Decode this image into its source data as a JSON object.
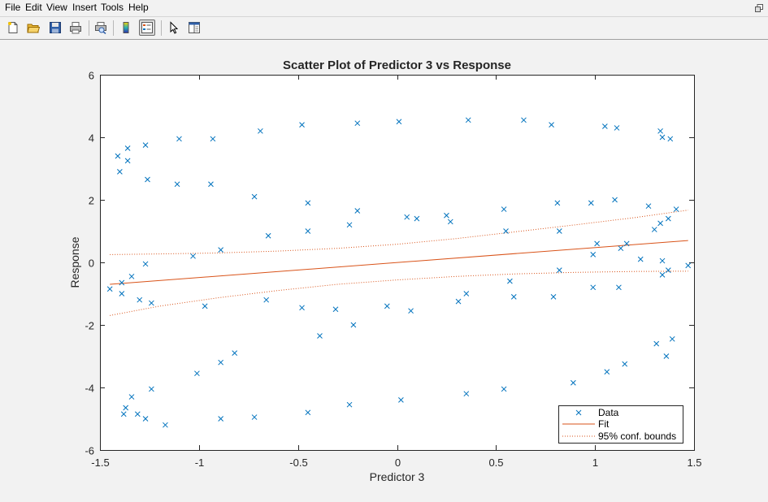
{
  "menu": {
    "items": [
      "File",
      "Edit",
      "View",
      "Insert",
      "Tools",
      "Help"
    ]
  },
  "toolbar": {
    "icons": [
      "new-figure-icon",
      "open-file-icon",
      "save-icon",
      "print-icon",
      "print-preview-icon",
      "colorbar-icon",
      "legend-icon",
      "pointer-icon",
      "property-editor-icon"
    ]
  },
  "colors": {
    "data": "#0072BD",
    "fit": "#D95319",
    "plot_bg": "#ffffff",
    "window_bg": "#f2f2f2"
  },
  "chart_data": {
    "type": "scatter",
    "title": "Scatter Plot of Predictor 3 vs Response",
    "xlabel": "Predictor 3",
    "ylabel": "Response",
    "xlim": [
      -1.5,
      1.5
    ],
    "ylim": [
      -6,
      6
    ],
    "xticks": [
      "-1.5",
      "-1",
      "-0.5",
      "0",
      "0.5",
      "1",
      "1.5"
    ],
    "yticks": [
      "-6",
      "-4",
      "-2",
      "0",
      "2",
      "4",
      "6"
    ],
    "grid": false,
    "legend_position": "bottom-right",
    "legend": [
      "Data",
      "Fit",
      "95% conf. bounds"
    ],
    "data_points": [
      [
        -1.41,
        3.4
      ],
      [
        -1.4,
        2.9
      ],
      [
        -1.36,
        3.65
      ],
      [
        -1.36,
        3.25
      ],
      [
        -1.27,
        3.75
      ],
      [
        -1.26,
        2.65
      ],
      [
        -1.11,
        2.5
      ],
      [
        -1.1,
        3.95
      ],
      [
        -0.94,
        2.5
      ],
      [
        -0.93,
        3.95
      ],
      [
        -0.89,
        0.4
      ],
      [
        -0.72,
        2.1
      ],
      [
        -0.69,
        4.2
      ],
      [
        -0.65,
        0.85
      ],
      [
        -0.48,
        4.4
      ],
      [
        -0.45,
        1.9
      ],
      [
        -0.45,
        1.0
      ],
      [
        -0.2,
        4.45
      ],
      [
        -0.2,
        1.65
      ],
      [
        -0.24,
        1.2
      ],
      [
        0.01,
        4.5
      ],
      [
        0.05,
        1.45
      ],
      [
        0.1,
        1.4
      ],
      [
        0.25,
        1.5
      ],
      [
        0.27,
        1.3
      ],
      [
        0.36,
        4.55
      ],
      [
        0.54,
        1.7
      ],
      [
        0.55,
        1.0
      ],
      [
        0.64,
        4.55
      ],
      [
        0.78,
        4.4
      ],
      [
        0.81,
        1.9
      ],
      [
        0.82,
        1.0
      ],
      [
        0.98,
        1.9
      ],
      [
        1.05,
        4.35
      ],
      [
        1.11,
        4.3
      ],
      [
        1.1,
        2.0
      ],
      [
        1.27,
        1.8
      ],
      [
        1.3,
        1.05
      ],
      [
        1.33,
        4.2
      ],
      [
        1.34,
        4.0
      ],
      [
        1.38,
        3.95
      ],
      [
        1.41,
        1.7
      ],
      [
        1.37,
        1.4
      ],
      [
        1.33,
        1.25
      ],
      [
        0.99,
        0.25
      ],
      [
        1.01,
        0.6
      ],
      [
        1.13,
        0.45
      ],
      [
        1.16,
        0.6
      ],
      [
        1.23,
        0.1
      ],
      [
        1.34,
        0.05
      ],
      [
        1.34,
        -0.4
      ],
      [
        1.37,
        -0.25
      ],
      [
        1.47,
        -0.1
      ],
      [
        -1.45,
        -0.85
      ],
      [
        -1.39,
        -1.0
      ],
      [
        -1.39,
        -0.65
      ],
      [
        -1.34,
        -0.45
      ],
      [
        -1.3,
        -1.2
      ],
      [
        -1.27,
        -0.05
      ],
      [
        -1.24,
        -1.3
      ],
      [
        -1.03,
        0.2
      ],
      [
        -0.97,
        -1.4
      ],
      [
        -0.66,
        -1.2
      ],
      [
        -0.48,
        -1.45
      ],
      [
        -0.31,
        -1.5
      ],
      [
        -0.05,
        -1.4
      ],
      [
        0.07,
        -1.55
      ],
      [
        0.31,
        -1.25
      ],
      [
        0.35,
        -1.0
      ],
      [
        0.57,
        -0.6
      ],
      [
        0.59,
        -1.1
      ],
      [
        0.79,
        -1.1
      ],
      [
        0.82,
        -0.25
      ],
      [
        0.99,
        -0.8
      ],
      [
        1.12,
        -0.8
      ],
      [
        -1.38,
        -4.85
      ],
      [
        -1.37,
        -4.65
      ],
      [
        -1.34,
        -4.3
      ],
      [
        -1.31,
        -4.85
      ],
      [
        -1.27,
        -5.0
      ],
      [
        -1.24,
        -4.05
      ],
      [
        -1.17,
        -5.2
      ],
      [
        -1.01,
        -3.55
      ],
      [
        -0.89,
        -3.2
      ],
      [
        -0.89,
        -5.0
      ],
      [
        -0.82,
        -2.9
      ],
      [
        -0.72,
        -4.95
      ],
      [
        -0.45,
        -4.8
      ],
      [
        -0.39,
        -2.35
      ],
      [
        -0.24,
        -4.55
      ],
      [
        -0.22,
        -2.0
      ],
      [
        0.02,
        -4.4
      ],
      [
        0.35,
        -4.2
      ],
      [
        0.54,
        -4.05
      ],
      [
        0.89,
        -3.85
      ],
      [
        1.06,
        -3.5
      ],
      [
        1.15,
        -3.25
      ],
      [
        1.31,
        -2.6
      ],
      [
        1.36,
        -3.0
      ],
      [
        1.39,
        -2.45
      ]
    ],
    "fit_line": [
      [
        -1.45,
        -0.7
      ],
      [
        1.47,
        0.7
      ]
    ],
    "conf_upper": [
      [
        -1.45,
        0.25
      ],
      [
        -1.2,
        0.27
      ],
      [
        -0.9,
        0.3
      ],
      [
        -0.6,
        0.36
      ],
      [
        -0.3,
        0.45
      ],
      [
        0.0,
        0.58
      ],
      [
        0.3,
        0.76
      ],
      [
        0.6,
        0.98
      ],
      [
        0.9,
        1.2
      ],
      [
        1.2,
        1.43
      ],
      [
        1.47,
        1.67
      ]
    ],
    "conf_lower": [
      [
        -1.45,
        -1.7
      ],
      [
        -1.2,
        -1.4
      ],
      [
        -0.9,
        -1.13
      ],
      [
        -0.6,
        -0.9
      ],
      [
        -0.3,
        -0.7
      ],
      [
        0.0,
        -0.56
      ],
      [
        0.3,
        -0.45
      ],
      [
        0.6,
        -0.37
      ],
      [
        0.9,
        -0.32
      ],
      [
        1.2,
        -0.29
      ],
      [
        1.47,
        -0.28
      ]
    ]
  }
}
